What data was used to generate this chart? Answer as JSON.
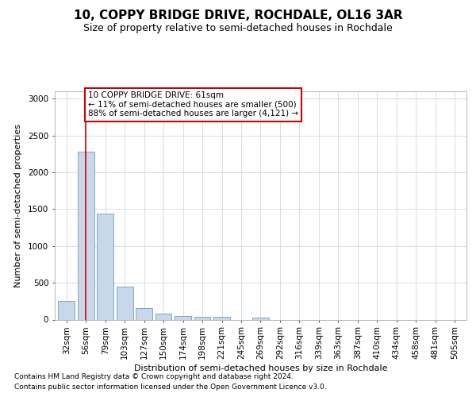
{
  "title1": "10, COPPY BRIDGE DRIVE, ROCHDALE, OL16 3AR",
  "title2": "Size of property relative to semi-detached houses in Rochdale",
  "xlabel": "Distribution of semi-detached houses by size in Rochdale",
  "ylabel": "Number of semi-detached properties",
  "footer1": "Contains HM Land Registry data © Crown copyright and database right 2024.",
  "footer2": "Contains public sector information licensed under the Open Government Licence v3.0.",
  "categories": [
    "32sqm",
    "56sqm",
    "79sqm",
    "103sqm",
    "127sqm",
    "150sqm",
    "174sqm",
    "198sqm",
    "221sqm",
    "245sqm",
    "269sqm",
    "292sqm",
    "316sqm",
    "339sqm",
    "363sqm",
    "387sqm",
    "410sqm",
    "434sqm",
    "458sqm",
    "481sqm",
    "505sqm"
  ],
  "values": [
    250,
    2280,
    1440,
    450,
    155,
    85,
    50,
    42,
    38,
    0,
    32,
    0,
    0,
    0,
    0,
    0,
    0,
    0,
    0,
    0,
    0
  ],
  "bar_color": "#c8d8ea",
  "bar_edge_color": "#7aaac8",
  "subject_bar_line_color": "#cc0000",
  "subject_bar_index": 1,
  "annotation_line1": "10 COPPY BRIDGE DRIVE: 61sqm",
  "annotation_line2": "← 11% of semi-detached houses are smaller (500)",
  "annotation_line3": "88% of semi-detached houses are larger (4,121) →",
  "annotation_box_facecolor": "white",
  "annotation_box_edgecolor": "#cc0000",
  "ylim": [
    0,
    3100
  ],
  "yticks": [
    0,
    500,
    1000,
    1500,
    2000,
    2500,
    3000
  ],
  "bg_color": "white",
  "grid_color": "#d0d8e0",
  "spine_color": "#b0b8c0",
  "title1_fontsize": 11,
  "title2_fontsize": 9,
  "xlabel_fontsize": 8,
  "ylabel_fontsize": 8,
  "tick_fontsize": 7.5,
  "annotation_fontsize": 7.5,
  "footer_fontsize": 6.5
}
